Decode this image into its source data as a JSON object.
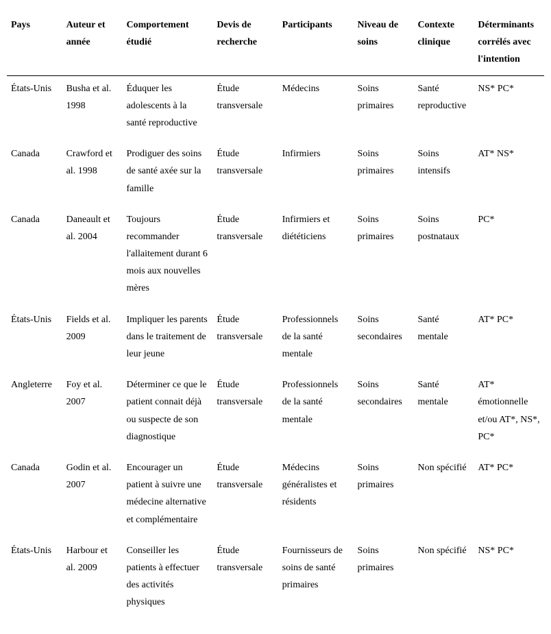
{
  "table": {
    "columns": [
      "Pays",
      "Auteur et année",
      "Comportement étudié",
      "Devis de recherche",
      "Participants",
      "Niveau de soins",
      "Contexte clinique",
      "Déterminants corrélés avec l'intention"
    ],
    "rows": [
      {
        "pays": "États-Unis",
        "auteur": "Busha et al. 1998",
        "comportement": "Éduquer les adolescents à la santé reproductive",
        "devis": "Étude transversale",
        "participants": "Médecins",
        "niveau": "Soins primaires",
        "contexte": "Santé reproductive",
        "determinants": "NS* PC*"
      },
      {
        "pays": "Canada",
        "auteur": "Crawford et al. 1998",
        "comportement": "Prodiguer des soins de santé axée sur la famille",
        "devis": "Étude transversale",
        "participants": "Infirmiers",
        "niveau": "Soins primaires",
        "contexte": "Soins intensifs",
        "determinants": "AT* NS*"
      },
      {
        "pays": "Canada",
        "auteur": "Daneault et al. 2004",
        "comportement": "Toujours recommander l'allaitement durant 6 mois aux nouvelles mères",
        "devis": "Étude transversale",
        "participants": "Infirmiers et diététiciens",
        "niveau": "Soins primaires",
        "contexte": "Soins postnataux",
        "determinants": "PC*"
      },
      {
        "pays": "États-Unis",
        "auteur": "Fields et al. 2009",
        "comportement": "Impliquer les parents dans le traitement de leur jeune",
        "devis": "Étude transversale",
        "participants": "Professionnels de la santé mentale",
        "niveau": "Soins secondaires",
        "contexte": "Santé mentale",
        "determinants": "AT* PC*"
      },
      {
        "pays": "Angleterre",
        "auteur": "Foy et al. 2007",
        "comportement": "Déterminer ce que le patient connait déjà ou suspecte de son diagnostique",
        "devis": "Étude transversale",
        "participants": "Professionnels de la santé mentale",
        "niveau": "Soins secondaires",
        "contexte": "Santé mentale",
        "determinants": "AT* émotionnelle et/ou AT*, NS*, PC*"
      },
      {
        "pays": "Canada",
        "auteur": "Godin et al. 2007",
        "comportement": "Encourager un patient à suivre une médecine alternative et complémentaire",
        "devis": "Étude transversale",
        "participants": "Médecins généralistes et résidents",
        "niveau": "Soins primaires",
        "contexte": "Non spécifié",
        "determinants": "AT* PC*"
      },
      {
        "pays": "États-Unis",
        "auteur": "Harbour et al. 2009",
        "comportement": "Conseiller les patients à effectuer des activités physiques",
        "devis": "Étude transversale",
        "participants": "Fournisseurs de soins de santé primaires",
        "niveau": "Soins primaires",
        "contexte": "Non spécifié",
        "determinants": "NS* PC*"
      }
    ],
    "styling": {
      "font_family": "Times New Roman",
      "header_fontsize_pt": 11,
      "body_fontsize_pt": 11,
      "header_weight": "bold",
      "line_height": 1.8,
      "border_header_bottom": "#000000",
      "background_color": "#ffffff",
      "text_color": "#000000",
      "column_widths_pct": [
        11,
        12,
        18,
        13,
        15,
        12,
        12,
        14
      ]
    }
  }
}
